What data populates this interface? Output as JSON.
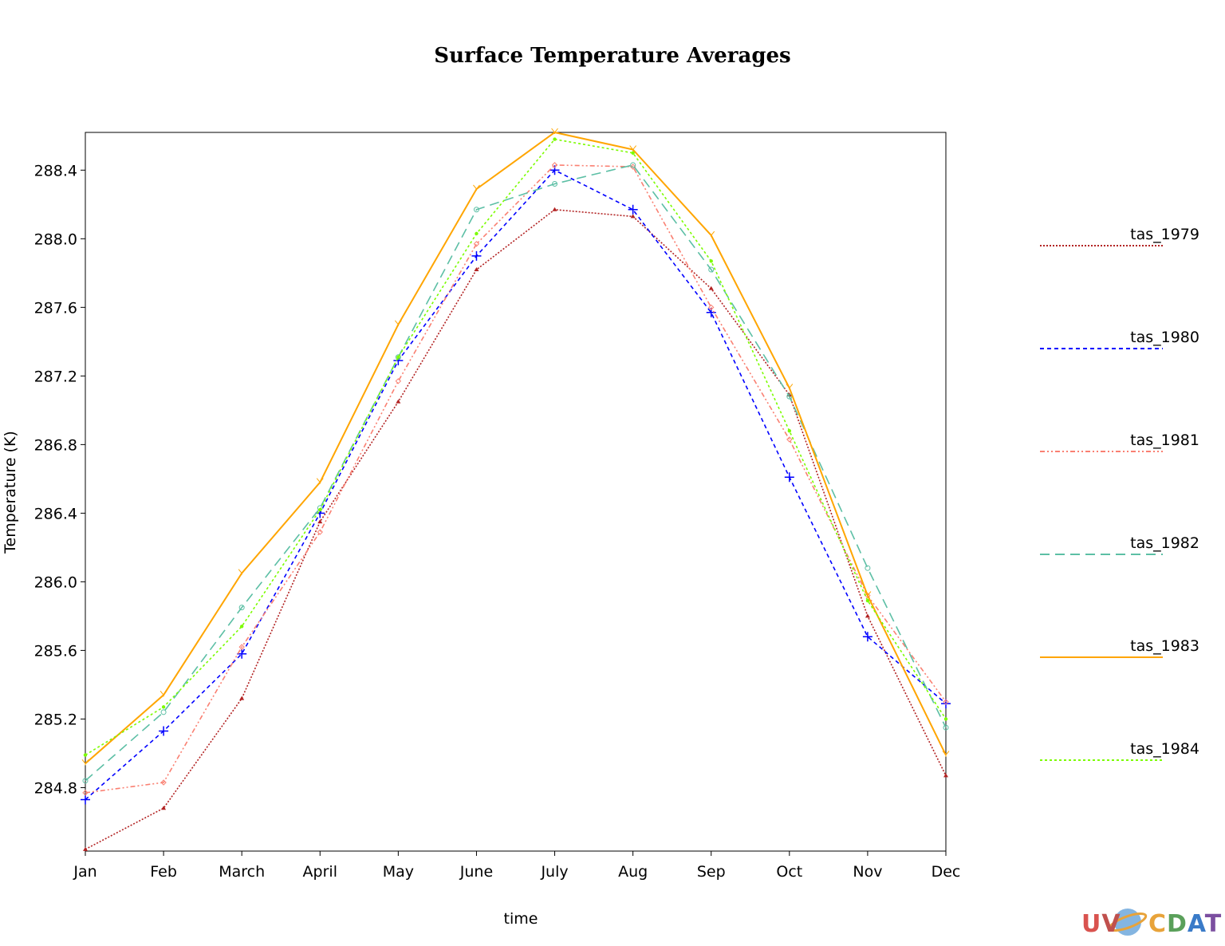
{
  "chart_data": {
    "type": "line",
    "title": "Surface Temperature Averages",
    "xlabel": "time",
    "ylabel": "Temperature (K)",
    "categories": [
      "Jan",
      "Feb",
      "March",
      "April",
      "May",
      "June",
      "July",
      "Aug",
      "Sep",
      "Oct",
      "Nov",
      "Dec"
    ],
    "ylim": [
      284.43,
      288.62
    ],
    "yticks": [
      "284.8",
      "285.2",
      "285.6",
      "286.0",
      "286.4",
      "286.8",
      "287.2",
      "287.6",
      "288.0",
      "288.4"
    ],
    "grid": false,
    "legend_position": "right",
    "series": [
      {
        "name": "tas_1979",
        "color": "#b22222",
        "style": "dotted",
        "marker": "triangle",
        "values": [
          284.44,
          284.68,
          285.32,
          286.35,
          287.05,
          287.82,
          288.17,
          288.13,
          287.71,
          287.09,
          285.8,
          284.87
        ]
      },
      {
        "name": "tas_1980",
        "color": "#0000ff",
        "style": "dashed",
        "marker": "plus",
        "values": [
          284.73,
          285.13,
          285.58,
          286.4,
          287.29,
          287.9,
          288.4,
          288.17,
          287.57,
          286.61,
          285.68,
          285.29
        ]
      },
      {
        "name": "tas_1981",
        "color": "#fa8072",
        "style": "dashdotdot",
        "marker": "diamond",
        "values": [
          284.77,
          284.83,
          285.62,
          286.29,
          287.17,
          287.97,
          288.43,
          288.42,
          287.6,
          286.83,
          285.92,
          285.3
        ]
      },
      {
        "name": "tas_1982",
        "color": "#5cbfa5",
        "style": "longdash",
        "marker": "circle",
        "values": [
          284.84,
          285.24,
          285.85,
          286.43,
          287.31,
          288.17,
          288.32,
          288.43,
          287.82,
          287.08,
          286.08,
          285.15
        ]
      },
      {
        "name": "tas_1983",
        "color": "#ffa500",
        "style": "solid",
        "marker": "ycross",
        "values": [
          284.94,
          285.34,
          286.05,
          286.58,
          287.5,
          288.29,
          288.62,
          288.52,
          288.02,
          287.13,
          285.92,
          284.99
        ]
      },
      {
        "name": "tas_1984",
        "color": "#7cfc00",
        "style": "shortdash",
        "marker": "dot",
        "values": [
          284.99,
          285.27,
          285.74,
          286.42,
          287.31,
          288.03,
          288.58,
          288.5,
          287.87,
          286.88,
          285.89,
          285.2
        ]
      }
    ]
  },
  "logo": {
    "text": "UV-CDAT",
    "colors": [
      "#d9534f",
      "#e8a33a",
      "#5aa05a",
      "#3a7bc8",
      "#7b4fa0"
    ]
  }
}
